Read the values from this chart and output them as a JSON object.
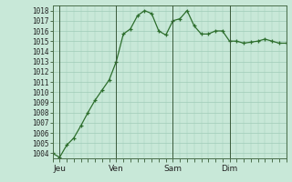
{
  "y_values": [
    1004.0,
    1003.6,
    1004.8,
    1005.5,
    1006.7,
    1008.0,
    1009.2,
    1010.2,
    1011.2,
    1013.0,
    1015.7,
    1016.2,
    1017.5,
    1018.0,
    1017.7,
    1016.0,
    1015.6,
    1017.0,
    1017.2,
    1018.0,
    1016.5,
    1015.7,
    1015.7,
    1016.0,
    1016.0,
    1015.0,
    1015.0,
    1014.8,
    1014.9,
    1015.0,
    1015.2,
    1015.0,
    1014.8,
    1014.8
  ],
  "x_ticks_pos": [
    1,
    9,
    17,
    25
  ],
  "x_tick_labels": [
    "Jeu",
    "Ven",
    "Sam",
    "Dim"
  ],
  "y_min": 1003.5,
  "y_max": 1018.5,
  "y_ticks": [
    1004,
    1005,
    1006,
    1007,
    1008,
    1009,
    1010,
    1011,
    1012,
    1013,
    1014,
    1015,
    1016,
    1017,
    1018
  ],
  "line_color": "#2d6e2d",
  "marker_color": "#2d6e2d",
  "bg_color": "#c8e8d8",
  "grid_color": "#a0ccb8",
  "border_color": "#4a6e4a",
  "vline_color": "#3a5a3a"
}
